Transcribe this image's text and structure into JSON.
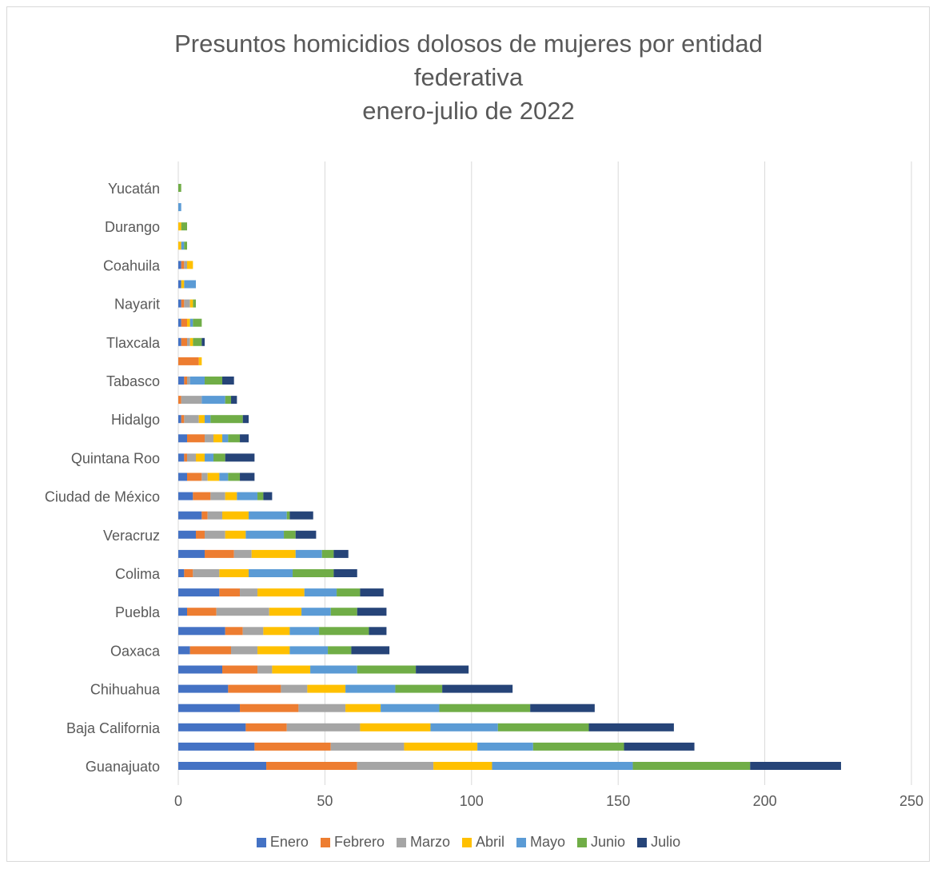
{
  "chart_data": {
    "type": "bar",
    "orientation": "horizontal",
    "stacked": true,
    "title": "Presuntos homicidios dolosos de mujeres por entidad federativa enero-julio de 2022",
    "title_lines": [
      "Presuntos homicidios dolosos de mujeres por entidad",
      "federativa",
      "enero-julio de 2022"
    ],
    "xlim": [
      0,
      250
    ],
    "x_ticks": [
      "0",
      "50",
      "100",
      "150",
      "200",
      "250"
    ],
    "grid": "vertical",
    "legend_position": "bottom",
    "categories": [
      "Guanajuato",
      "",
      "Baja California",
      "",
      "Chihuahua",
      "",
      "Oaxaca",
      "",
      "Puebla",
      "",
      "Colima",
      "",
      "Veracruz",
      "",
      "Ciudad de México",
      "",
      "Quintana Roo",
      "",
      "Hidalgo",
      "",
      "Tabasco",
      "",
      "Tlaxcala",
      "",
      "Nayarit",
      "",
      "Coahuila",
      "",
      "Durango",
      "",
      "Yucatán"
    ],
    "series": [
      {
        "name": "Enero",
        "color": "#4472C4",
        "values": [
          30,
          26,
          23,
          21,
          17,
          15,
          4,
          16,
          3,
          14,
          2,
          9,
          6,
          8,
          5,
          3,
          2,
          3,
          1,
          0,
          2,
          0,
          1,
          1,
          1,
          1,
          1,
          0,
          0,
          0,
          0
        ]
      },
      {
        "name": "Febrero",
        "color": "#ED7D31",
        "values": [
          31,
          26,
          14,
          20,
          18,
          12,
          14,
          6,
          10,
          7,
          3,
          10,
          3,
          2,
          6,
          5,
          1,
          6,
          1,
          1,
          1,
          7,
          2,
          2,
          1,
          0,
          1,
          0,
          0,
          0,
          0
        ]
      },
      {
        "name": "Marzo",
        "color": "#A5A5A5",
        "values": [
          26,
          25,
          25,
          16,
          9,
          5,
          9,
          7,
          18,
          6,
          9,
          6,
          7,
          5,
          5,
          2,
          3,
          3,
          5,
          7,
          1,
          0,
          1,
          0,
          2,
          0,
          1,
          0,
          0,
          0,
          0
        ]
      },
      {
        "name": "Abril",
        "color": "#FFC000",
        "values": [
          20,
          25,
          24,
          12,
          13,
          13,
          11,
          9,
          11,
          16,
          10,
          15,
          7,
          9,
          4,
          4,
          3,
          3,
          2,
          0,
          0,
          1,
          1,
          1,
          1,
          1,
          2,
          1,
          1,
          0,
          0
        ]
      },
      {
        "name": "Mayo",
        "color": "#5B9BD5",
        "values": [
          48,
          19,
          23,
          20,
          17,
          16,
          13,
          10,
          10,
          11,
          15,
          9,
          13,
          13,
          7,
          3,
          3,
          2,
          2,
          8,
          5,
          0,
          0,
          1,
          0,
          4,
          0,
          1,
          0,
          1,
          0
        ]
      },
      {
        "name": "Junio",
        "color": "#70AD47",
        "values": [
          40,
          31,
          31,
          31,
          16,
          20,
          8,
          17,
          9,
          8,
          14,
          4,
          4,
          1,
          2,
          4,
          4,
          4,
          11,
          2,
          6,
          0,
          3,
          3,
          1,
          0,
          0,
          1,
          2,
          0,
          1
        ]
      },
      {
        "name": "Julio",
        "color": "#264478",
        "values": [
          31,
          24,
          29,
          22,
          24,
          18,
          13,
          6,
          10,
          8,
          8,
          5,
          7,
          8,
          3,
          5,
          10,
          3,
          2,
          2,
          4,
          0,
          1,
          0,
          0,
          0,
          0,
          0,
          0,
          0,
          0
        ]
      }
    ]
  }
}
